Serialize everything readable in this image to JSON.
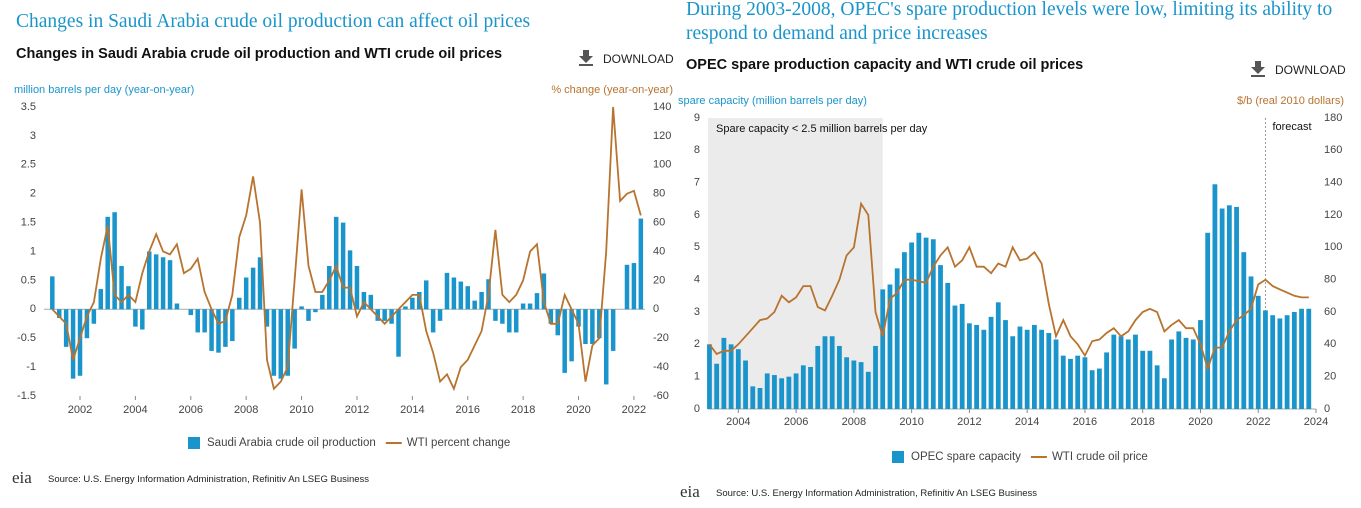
{
  "chart_data": [
    {
      "type": "combo",
      "headline": "Changes in Saudi Arabia crude oil production can affect oil prices",
      "title": "Changes in Saudi Arabia crude oil production and WTI crude oil prices",
      "download": "DOWNLOAD",
      "y_label": "million barrels per day (year-on-year)",
      "y2_label": "% change (year-on-year)",
      "source": "Source: U.S. Energy Information Administration, Refinitiv An LSEG Business",
      "logo": "eia",
      "xlim": [
        2000.7,
        2022.4
      ],
      "xticks": [
        2002,
        2004,
        2006,
        2008,
        2010,
        2012,
        2014,
        2016,
        2018,
        2020,
        2022
      ],
      "ylim": [
        -1.5,
        3.5
      ],
      "yticks": [
        -1.5,
        -1.0,
        -0.5,
        0.0,
        0.5,
        1.0,
        1.5,
        2.0,
        2.5,
        3.0,
        3.5
      ],
      "y2lim": [
        -60,
        140
      ],
      "y2ticks": [
        -60,
        -40,
        -20,
        0,
        20,
        40,
        60,
        80,
        100,
        120,
        140
      ],
      "grid": false,
      "x": [
        2001,
        2001.25,
        2001.5,
        2001.75,
        2002,
        2002.25,
        2002.5,
        2002.75,
        2003,
        2003.25,
        2003.5,
        2003.75,
        2004,
        2004.25,
        2004.5,
        2004.75,
        2005,
        2005.25,
        2005.5,
        2005.75,
        2006,
        2006.25,
        2006.5,
        2006.75,
        2007,
        2007.25,
        2007.5,
        2007.75,
        2008,
        2008.25,
        2008.5,
        2008.75,
        2009,
        2009.25,
        2009.5,
        2009.75,
        2010,
        2010.25,
        2010.5,
        2010.75,
        2011,
        2011.25,
        2011.5,
        2011.75,
        2012,
        2012.25,
        2012.5,
        2012.75,
        2013,
        2013.25,
        2013.5,
        2013.75,
        2014,
        2014.25,
        2014.5,
        2014.75,
        2015,
        2015.25,
        2015.5,
        2015.75,
        2016,
        2016.25,
        2016.5,
        2016.75,
        2017,
        2017.25,
        2017.5,
        2017.75,
        2018,
        2018.25,
        2018.5,
        2018.75,
        2019,
        2019.25,
        2019.5,
        2019.75,
        2020,
        2020.25,
        2020.5,
        2020.75,
        2021,
        2021.25,
        2021.5,
        2021.75,
        2022,
        2022.25
      ],
      "series": [
        {
          "name": "Saudi Arabia crude oil production",
          "type": "bar",
          "color": "#1a95cb",
          "values": [
            0.57,
            -0.15,
            -0.65,
            -1.2,
            -1.15,
            -0.5,
            -0.25,
            0.35,
            1.6,
            1.68,
            0.75,
            0.4,
            -0.3,
            -0.35,
            1.0,
            0.95,
            0.9,
            0.85,
            0.1,
            0.0,
            -0.1,
            -0.4,
            -0.4,
            -0.72,
            -0.75,
            -0.65,
            -0.55,
            0.2,
            0.55,
            0.72,
            0.9,
            -0.3,
            -1.15,
            -1.2,
            -1.15,
            -0.68,
            0.05,
            -0.2,
            -0.05,
            0.25,
            0.75,
            1.6,
            1.5,
            1.02,
            0.75,
            0.3,
            0.25,
            -0.2,
            -0.2,
            -0.25,
            -0.82,
            0.05,
            0.2,
            0.3,
            0.5,
            -0.4,
            -0.2,
            0.63,
            0.55,
            0.48,
            0.4,
            0.15,
            0.3,
            0.52,
            -0.2,
            -0.25,
            -0.4,
            -0.4,
            0.1,
            0.1,
            0.28,
            0.62,
            -0.25,
            -0.45,
            -1.1,
            -0.9,
            -0.3,
            -0.6,
            -0.6,
            -0.5,
            -1.3,
            -0.72,
            0.0,
            0.77,
            0.8,
            1.57
          ]
        },
        {
          "name": "WTI percent change",
          "type": "line",
          "axis": "y2",
          "color": "#b8732f",
          "values": [
            0,
            -5,
            -10,
            -35,
            -20,
            -5,
            5,
            35,
            58,
            10,
            5,
            10,
            5,
            25,
            40,
            52,
            40,
            38,
            45,
            25,
            28,
            35,
            12,
            0,
            -10,
            -8,
            10,
            50,
            65,
            92,
            60,
            -35,
            -55,
            -50,
            -40,
            20,
            83,
            30,
            12,
            12,
            20,
            30,
            15,
            15,
            -5,
            5,
            0,
            -5,
            -10,
            -5,
            0,
            5,
            10,
            10,
            -15,
            -30,
            -50,
            -45,
            -55,
            -40,
            -35,
            -25,
            -15,
            10,
            55,
            10,
            5,
            10,
            20,
            40,
            45,
            5,
            -10,
            -10,
            10,
            0,
            -10,
            -50,
            -25,
            -20,
            40,
            140,
            75,
            80,
            82,
            65
          ]
        }
      ]
    },
    {
      "type": "combo",
      "headline": "During 2003-2008, OPEC's spare production levels were low, limiting its ability to respond to demand and price increases",
      "title": "OPEC spare production capacity and WTI crude oil prices",
      "download": "DOWNLOAD",
      "y_label": "spare capacity (million barrels per day)",
      "y2_label": "$/b (real 2010 dollars)",
      "source": "Source: U.S. Energy Information Administration, Refinitiv An LSEG Business",
      "logo": "eia",
      "annotations": [
        "Spare capacity < 2.5 million barrels per day",
        "forecast"
      ],
      "shade": [
        2002.95,
        2009
      ],
      "forecast_x": 2022.25,
      "xlim": [
        2002.95,
        2024
      ],
      "xticks": [
        2004,
        2006,
        2008,
        2010,
        2012,
        2014,
        2016,
        2018,
        2020,
        2022,
        2024
      ],
      "ylim": [
        0,
        9
      ],
      "yticks": [
        0,
        1,
        2,
        3,
        4,
        5,
        6,
        7,
        8,
        9
      ],
      "y2lim": [
        0,
        180
      ],
      "y2ticks": [
        0,
        20,
        40,
        60,
        80,
        100,
        120,
        140,
        160,
        180
      ],
      "grid": false,
      "x": [
        2003,
        2003.25,
        2003.5,
        2003.75,
        2004,
        2004.25,
        2004.5,
        2004.75,
        2005,
        2005.25,
        2005.5,
        2005.75,
        2006,
        2006.25,
        2006.5,
        2006.75,
        2007,
        2007.25,
        2007.5,
        2007.75,
        2008,
        2008.25,
        2008.5,
        2008.75,
        2009,
        2009.25,
        2009.5,
        2009.75,
        2010,
        2010.25,
        2010.5,
        2010.75,
        2011,
        2011.25,
        2011.5,
        2011.75,
        2012,
        2012.25,
        2012.5,
        2012.75,
        2013,
        2013.25,
        2013.5,
        2013.75,
        2014,
        2014.25,
        2014.5,
        2014.75,
        2015,
        2015.25,
        2015.5,
        2015.75,
        2016,
        2016.25,
        2016.5,
        2016.75,
        2017,
        2017.25,
        2017.5,
        2017.75,
        2018,
        2018.25,
        2018.5,
        2018.75,
        2019,
        2019.25,
        2019.5,
        2019.75,
        2020,
        2020.25,
        2020.5,
        2020.75,
        2021,
        2021.25,
        2021.5,
        2021.75,
        2022,
        2022.25,
        2022.5,
        2022.75,
        2023,
        2023.25,
        2023.5,
        2023.75
      ],
      "series": [
        {
          "name": "OPEC spare capacity",
          "type": "bar",
          "color": "#1a95cb",
          "values": [
            2.0,
            1.4,
            2.2,
            2.0,
            1.85,
            1.5,
            0.7,
            0.65,
            1.1,
            1.05,
            0.95,
            1.0,
            1.1,
            1.35,
            1.3,
            1.95,
            2.25,
            2.25,
            1.95,
            1.6,
            1.5,
            1.45,
            1.15,
            1.95,
            3.7,
            3.85,
            4.35,
            4.85,
            5.15,
            5.45,
            5.3,
            5.25,
            4.45,
            3.9,
            3.2,
            3.25,
            2.65,
            2.6,
            2.45,
            2.85,
            3.3,
            2.75,
            2.25,
            2.55,
            2.45,
            2.6,
            2.45,
            2.35,
            2.15,
            1.65,
            1.55,
            1.65,
            1.6,
            1.2,
            1.25,
            1.75,
            2.3,
            2.25,
            2.15,
            2.3,
            1.8,
            1.8,
            1.35,
            0.95,
            2.15,
            2.4,
            2.2,
            2.15,
            2.75,
            5.45,
            6.95,
            6.2,
            6.3,
            6.25,
            4.85,
            4.1,
            3.5,
            3.05,
            2.9,
            2.8,
            2.9,
            3.0,
            3.1,
            3.1
          ]
        },
        {
          "name": "WTI crude oil price",
          "type": "line",
          "axis": "y2",
          "color": "#b8732f",
          "values": [
            40,
            34,
            36,
            36,
            40,
            45,
            50,
            55,
            56,
            60,
            70,
            66,
            69,
            76,
            76,
            63,
            61,
            70,
            80,
            95,
            100,
            127,
            120,
            60,
            45,
            68,
            72,
            80,
            80,
            79,
            78,
            88,
            95,
            100,
            88,
            92,
            100,
            88,
            88,
            84,
            90,
            88,
            100,
            92,
            93,
            97,
            90,
            65,
            45,
            55,
            45,
            40,
            33,
            42,
            43,
            47,
            50,
            45,
            48,
            55,
            60,
            62,
            60,
            48,
            52,
            55,
            50,
            50,
            40,
            25,
            38,
            38,
            48,
            55,
            58,
            62,
            77,
            80,
            76,
            74,
            72,
            70,
            69,
            69
          ]
        }
      ]
    }
  ]
}
